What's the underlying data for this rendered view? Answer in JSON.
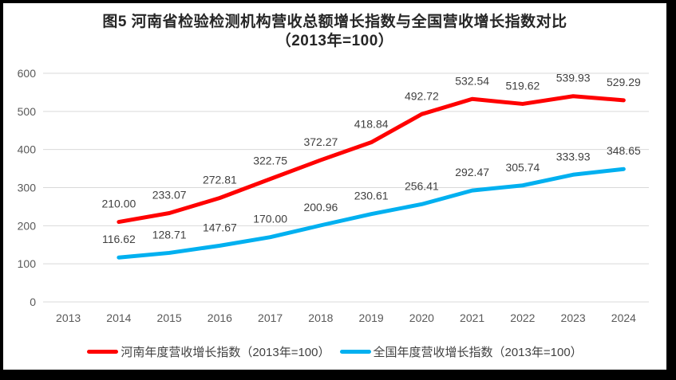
{
  "figure": {
    "title_line1": "图5  河南省检验检测机构营收总额增长指数与全国营收增长指数对比",
    "title_line2": "（2013年=100）"
  },
  "chart_data": {
    "type": "line",
    "title": "图5 河南省检验检测机构营收总额增长指数与全国营收增长指数对比（2013年=100）",
    "categories": [
      "2013",
      "2014",
      "2015",
      "2016",
      "2017",
      "2018",
      "2019",
      "2020",
      "2021",
      "2022",
      "2023",
      "2024"
    ],
    "series": [
      {
        "id": "henan",
        "name": "河南年度营收增长指数（2013年=100）",
        "color": "#FF0000",
        "start_category_index": 1,
        "values": [
          210.0,
          233.07,
          272.81,
          322.75,
          372.27,
          418.84,
          492.72,
          532.54,
          519.62,
          539.93,
          529.29
        ]
      },
      {
        "id": "national",
        "name": "全国年度营收增长指数（2013年=100）",
        "color": "#00B0F0",
        "start_category_index": 1,
        "values": [
          116.62,
          128.71,
          147.67,
          170.0,
          200.96,
          230.61,
          256.41,
          292.47,
          305.74,
          333.93,
          348.65
        ]
      }
    ],
    "ylim": [
      0,
      600
    ],
    "ytick_interval": 100,
    "yticks": [
      0,
      100,
      200,
      300,
      400,
      500,
      600
    ],
    "grid": true,
    "data_labels": true,
    "label_decimals": 2,
    "legend_position": "bottom"
  },
  "colors": {
    "background": "#FFFFFF",
    "frame": "#000000",
    "grid": "#D9D9D9",
    "axis_text": "#595959",
    "data_label_text": "#404040",
    "title_text": "#262626",
    "legend_text": "#404040"
  }
}
